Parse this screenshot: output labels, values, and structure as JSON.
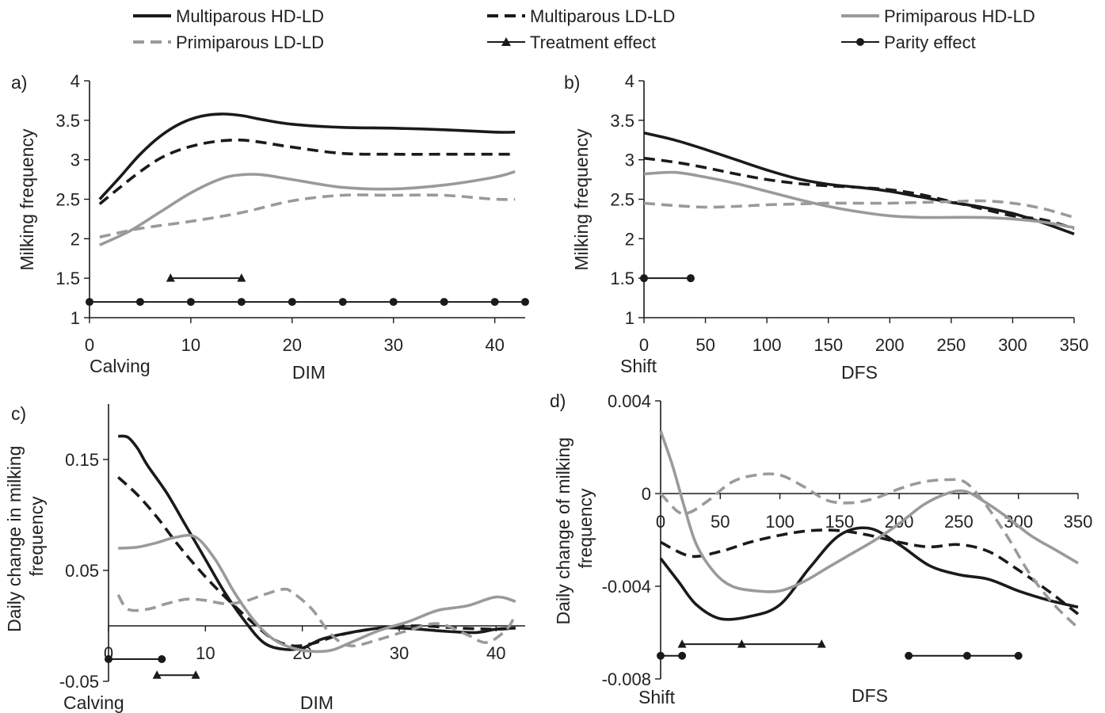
{
  "legend": [
    {
      "name": "Multiparous HD-LD",
      "color": "#1a1a1a",
      "dash": "solid",
      "marker": "none"
    },
    {
      "name": "Multiparous LD-LD",
      "color": "#1a1a1a",
      "dash": "dashed",
      "marker": "none"
    },
    {
      "name": "Primiparous HD-LD",
      "color": "#9a9a9a",
      "dash": "solid",
      "marker": "none"
    },
    {
      "name": "Primiparous LD-LD",
      "color": "#9a9a9a",
      "dash": "dashed",
      "marker": "none"
    },
    {
      "name": "Treatment effect",
      "color": "#1a1a1a",
      "dash": "solid",
      "marker": "triangle"
    },
    {
      "name": "Parity effect",
      "color": "#1a1a1a",
      "dash": "solid",
      "marker": "circle"
    }
  ],
  "chart_data": [
    {
      "panel": "a)",
      "type": "line",
      "ylabel": "Milking frequency",
      "xlabel": "DIM",
      "origin_label": "Calving",
      "xlim": [
        0,
        43
      ],
      "ylim": [
        1,
        4
      ],
      "xticks": [
        0,
        10,
        20,
        30,
        40
      ],
      "yticks": [
        1,
        1.5,
        2,
        2.5,
        3,
        3.5,
        4
      ],
      "series": [
        {
          "name": "Multiparous HD-LD",
          "x": [
            1,
            3,
            5,
            7,
            9,
            11,
            13,
            15,
            17,
            20,
            25,
            30,
            35,
            40,
            42
          ],
          "y": [
            2.5,
            2.78,
            3.07,
            3.3,
            3.46,
            3.55,
            3.58,
            3.56,
            3.51,
            3.45,
            3.41,
            3.4,
            3.38,
            3.35,
            3.35
          ]
        },
        {
          "name": "Multiparous LD-LD",
          "x": [
            1,
            3,
            5,
            7,
            9,
            11,
            13,
            15,
            17,
            20,
            25,
            30,
            35,
            40,
            42
          ],
          "y": [
            2.44,
            2.65,
            2.85,
            3.02,
            3.13,
            3.2,
            3.24,
            3.25,
            3.22,
            3.16,
            3.08,
            3.07,
            3.07,
            3.07,
            3.07
          ]
        },
        {
          "name": "Primiparous HD-LD",
          "x": [
            1,
            4,
            7,
            10,
            13,
            15,
            17,
            20,
            25,
            30,
            35,
            40,
            42
          ],
          "y": [
            1.92,
            2.1,
            2.34,
            2.58,
            2.76,
            2.81,
            2.81,
            2.75,
            2.65,
            2.63,
            2.68,
            2.78,
            2.85
          ]
        },
        {
          "name": "Primiparous LD-LD",
          "x": [
            1,
            5,
            10,
            15,
            20,
            25,
            30,
            35,
            40,
            42
          ],
          "y": [
            2.02,
            2.13,
            2.22,
            2.33,
            2.48,
            2.55,
            2.55,
            2.55,
            2.5,
            2.5
          ]
        }
      ],
      "effects": [
        {
          "name": "Treatment effect",
          "y": 1.5,
          "x": [
            8,
            15
          ]
        },
        {
          "name": "Parity effect",
          "y": 1.2,
          "x": [
            0,
            5,
            10,
            15,
            20,
            25,
            30,
            35,
            40,
            43
          ]
        }
      ]
    },
    {
      "panel": "b)",
      "type": "line",
      "ylabel": "Milking frequency",
      "xlabel": "DFS",
      "origin_label": "Shift",
      "xlim": [
        0,
        350
      ],
      "ylim": [
        1,
        4
      ],
      "xticks": [
        0,
        50,
        100,
        150,
        200,
        250,
        300,
        350
      ],
      "yticks": [
        1,
        1.5,
        2,
        2.5,
        3,
        3.5,
        4
      ],
      "series": [
        {
          "name": "Multiparous HD-LD",
          "x": [
            0,
            25,
            50,
            75,
            100,
            125,
            150,
            175,
            200,
            225,
            250,
            275,
            300,
            325,
            350
          ],
          "y": [
            3.34,
            3.25,
            3.13,
            3.0,
            2.87,
            2.76,
            2.69,
            2.65,
            2.6,
            2.53,
            2.46,
            2.4,
            2.32,
            2.2,
            2.06
          ]
        },
        {
          "name": "Multiparous LD-LD",
          "x": [
            0,
            25,
            50,
            75,
            100,
            125,
            150,
            175,
            200,
            225,
            250,
            275,
            300,
            325,
            350
          ],
          "y": [
            3.02,
            2.97,
            2.9,
            2.82,
            2.75,
            2.7,
            2.67,
            2.65,
            2.62,
            2.56,
            2.47,
            2.38,
            2.29,
            2.24,
            2.13
          ]
        },
        {
          "name": "Primiparous HD-LD",
          "x": [
            0,
            25,
            50,
            75,
            100,
            125,
            150,
            175,
            200,
            225,
            250,
            275,
            300,
            325,
            350
          ],
          "y": [
            2.82,
            2.84,
            2.78,
            2.7,
            2.6,
            2.5,
            2.41,
            2.34,
            2.29,
            2.27,
            2.27,
            2.27,
            2.25,
            2.21,
            2.14
          ]
        },
        {
          "name": "Primiparous LD-LD",
          "x": [
            0,
            25,
            50,
            75,
            100,
            125,
            150,
            175,
            200,
            225,
            250,
            275,
            300,
            325,
            350
          ],
          "y": [
            2.45,
            2.42,
            2.4,
            2.41,
            2.43,
            2.44,
            2.45,
            2.45,
            2.45,
            2.46,
            2.47,
            2.48,
            2.45,
            2.38,
            2.27
          ]
        }
      ],
      "effects": [
        {
          "name": "Parity effect",
          "y": 1.5,
          "x": [
            0,
            38
          ]
        }
      ]
    },
    {
      "panel": "c)",
      "type": "line",
      "ylabel": "Daily change in milking frequency",
      "xlabel": "DIM",
      "origin_label": "Calving",
      "xlim": [
        0,
        43
      ],
      "ylim": [
        -0.05,
        0.2
      ],
      "xticks": [
        0,
        10,
        20,
        30,
        40
      ],
      "yticks": [
        -0.05,
        0.05,
        0.15
      ],
      "series": [
        {
          "name": "Multiparous HD-LD",
          "x": [
            1,
            2,
            3,
            4,
            6,
            8,
            10,
            12,
            14,
            16,
            18,
            20,
            22,
            25,
            28,
            30,
            32,
            35,
            38,
            40,
            42
          ],
          "y": [
            0.171,
            0.17,
            0.16,
            0.145,
            0.12,
            0.09,
            0.06,
            0.03,
            0.005,
            -0.015,
            -0.021,
            -0.02,
            -0.012,
            -0.006,
            -0.002,
            -0.002,
            -0.003,
            -0.005,
            -0.006,
            -0.003,
            -0.002
          ]
        },
        {
          "name": "Multiparous LD-LD",
          "x": [
            1,
            3,
            5,
            7,
            9,
            11,
            13,
            15,
            17,
            19,
            21,
            24,
            28,
            32,
            36,
            40,
            42
          ],
          "y": [
            0.134,
            0.118,
            0.098,
            0.075,
            0.054,
            0.035,
            0.018,
            0.002,
            -0.012,
            -0.018,
            -0.016,
            -0.008,
            -0.002,
            0.0,
            -0.002,
            -0.003,
            -0.002
          ]
        },
        {
          "name": "Primiparous HD-LD",
          "x": [
            1,
            3,
            5,
            7,
            9,
            11,
            13,
            15,
            17,
            19,
            21,
            23,
            25,
            28,
            31,
            34,
            37,
            40,
            42
          ],
          "y": [
            0.07,
            0.071,
            0.075,
            0.08,
            0.08,
            0.06,
            0.03,
            0.005,
            -0.012,
            -0.02,
            -0.023,
            -0.022,
            -0.015,
            -0.004,
            0.004,
            0.014,
            0.018,
            0.026,
            0.022
          ]
        },
        {
          "name": "Primiparous LD-LD",
          "x": [
            1,
            2,
            4,
            6,
            8,
            10,
            12,
            14,
            16,
            18,
            19,
            21,
            23,
            25,
            28,
            31,
            34,
            37,
            39,
            41,
            42
          ],
          "y": [
            0.028,
            0.015,
            0.015,
            0.02,
            0.024,
            0.023,
            0.02,
            0.022,
            0.028,
            0.033,
            0.03,
            0.015,
            -0.008,
            -0.018,
            -0.012,
            -0.004,
            0.002,
            -0.008,
            -0.015,
            -0.004,
            0.01
          ]
        }
      ],
      "effects": [
        {
          "name": "Parity effect",
          "y": -0.03,
          "x": [
            0,
            5.5
          ]
        },
        {
          "name": "Treatment effect",
          "y": -0.0445,
          "x": [
            5,
            9
          ]
        }
      ]
    },
    {
      "panel": "d)",
      "type": "line",
      "ylabel": "Daily change of milking frequency",
      "xlabel": "DFS",
      "origin_label": "Shift",
      "xlim": [
        0,
        350
      ],
      "ylim": [
        -0.008,
        0.004
      ],
      "xticks": [
        0,
        50,
        100,
        150,
        200,
        250,
        300,
        350
      ],
      "yticks": [
        -0.008,
        -0.004,
        0,
        0.004
      ],
      "ytick_labels": [
        "-0.008",
        "-0.004",
        "0",
        "0.004"
      ],
      "series": [
        {
          "name": "Multiparous HD-LD",
          "x": [
            0,
            15,
            30,
            50,
            75,
            100,
            125,
            150,
            175,
            200,
            225,
            250,
            275,
            300,
            325,
            350
          ],
          "y": [
            -0.0028,
            -0.0038,
            -0.0048,
            -0.0054,
            -0.0053,
            -0.0048,
            -0.0032,
            -0.0018,
            -0.0015,
            -0.0022,
            -0.0031,
            -0.0035,
            -0.0037,
            -0.0042,
            -0.0046,
            -0.0049
          ]
        },
        {
          "name": "Multiparous LD-LD",
          "x": [
            0,
            25,
            50,
            75,
            100,
            125,
            150,
            175,
            200,
            225,
            250,
            275,
            300,
            325,
            350
          ],
          "y": [
            -0.0021,
            -0.0027,
            -0.0025,
            -0.0021,
            -0.0018,
            -0.0016,
            -0.0016,
            -0.0018,
            -0.0021,
            -0.0023,
            -0.0022,
            -0.0025,
            -0.0033,
            -0.0042,
            -0.0052
          ]
        },
        {
          "name": "Primiparous HD-LD",
          "x": [
            0,
            10,
            20,
            30,
            45,
            60,
            80,
            100,
            120,
            140,
            160,
            180,
            200,
            220,
            240,
            255,
            270,
            290,
            310,
            330,
            350
          ],
          "y": [
            0.0027,
            0.0012,
            -0.0006,
            -0.0022,
            -0.0034,
            -0.004,
            -0.0042,
            -0.0042,
            -0.0038,
            -0.0032,
            -0.0026,
            -0.002,
            -0.0013,
            -0.0005,
            0.0,
            0.0001,
            -0.0003,
            -0.001,
            -0.0018,
            -0.0024,
            -0.003
          ]
        },
        {
          "name": "Primiparous LD-LD",
          "x": [
            0,
            15,
            25,
            40,
            60,
            80,
            100,
            120,
            140,
            160,
            180,
            200,
            220,
            240,
            255,
            270,
            290,
            310,
            330,
            350
          ],
          "y": [
            0.0,
            -0.0008,
            -0.0008,
            -0.0003,
            0.0005,
            0.0008,
            0.0008,
            0.0003,
            -0.0003,
            -0.0004,
            -0.0002,
            0.0002,
            0.0005,
            0.0006,
            0.0005,
            -0.0003,
            -0.0018,
            -0.0035,
            -0.0048,
            -0.0058
          ]
        }
      ],
      "effects": [
        {
          "name": "Parity effect",
          "y": -0.007,
          "x": [
            0,
            18
          ]
        },
        {
          "name": "Treatment effect",
          "y": -0.0065,
          "x": [
            18,
            68,
            135
          ]
        },
        {
          "name": "Parity effect",
          "y": -0.007,
          "x": [
            208,
            257,
            300
          ]
        }
      ]
    }
  ]
}
